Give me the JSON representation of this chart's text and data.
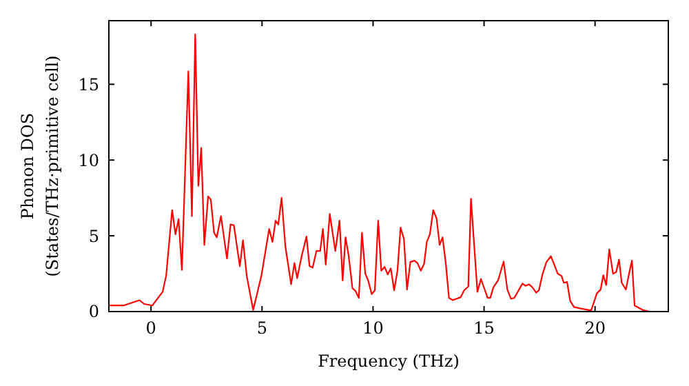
{
  "chart_data": {
    "type": "line",
    "xlabel": "Frequency (THz)",
    "ylabel": "Phonon DOS\n(States/THz·primitive cell)",
    "xlim": [
      -1.9,
      23.3
    ],
    "ylim": [
      0,
      19.2
    ],
    "xticks": [
      0,
      5,
      10,
      15,
      20
    ],
    "yticks": [
      0,
      5,
      10,
      15
    ],
    "grid": false,
    "marker": "none",
    "line_style": "solid",
    "series": [
      {
        "color": "#ff0000",
        "x": [
          -1.86,
          -1.24,
          -0.52,
          -0.31,
          0.06,
          0.52,
          0.68,
          0.95,
          1.1,
          1.24,
          1.39,
          1.68,
          1.84,
          1.99,
          2.13,
          2.26,
          2.4,
          2.57,
          2.69,
          2.84,
          2.96,
          3.15,
          3.42,
          3.58,
          3.73,
          4.0,
          4.14,
          4.31,
          4.6,
          4.97,
          5.32,
          5.47,
          5.61,
          5.73,
          5.88,
          6.05,
          6.31,
          6.46,
          6.58,
          6.79,
          7.0,
          7.14,
          7.28,
          7.45,
          7.62,
          7.74,
          7.87,
          8.05,
          8.3,
          8.49,
          8.63,
          8.76,
          8.9,
          9.07,
          9.21,
          9.36,
          9.5,
          9.65,
          9.78,
          9.94,
          10.08,
          10.23,
          10.37,
          10.52,
          10.66,
          10.8,
          10.95,
          11.1,
          11.24,
          11.39,
          11.53,
          11.68,
          11.86,
          12.0,
          12.15,
          12.3,
          12.42,
          12.56,
          12.71,
          12.86,
          13.0,
          13.13,
          13.27,
          13.42,
          13.59,
          13.95,
          14.1,
          14.29,
          14.41,
          14.7,
          14.86,
          15.16,
          15.28,
          15.42,
          15.63,
          15.88,
          16.05,
          16.21,
          16.36,
          16.73,
          16.87,
          17.02,
          17.18,
          17.35,
          17.47,
          17.64,
          17.81,
          18.01,
          18.16,
          18.32,
          18.49,
          18.59,
          18.74,
          18.88,
          19.05,
          19.36,
          19.73,
          19.83,
          20.08,
          20.25,
          20.37,
          20.5,
          20.64,
          20.81,
          20.95,
          21.08,
          21.2,
          21.39,
          21.53,
          21.66,
          21.78,
          22.15,
          22.46
        ],
        "values": [
          0.4,
          0.4,
          0.75,
          0.5,
          0.4,
          1.3,
          2.36,
          6.7,
          5.1,
          6.1,
          2.75,
          15.85,
          6.3,
          18.3,
          8.3,
          10.8,
          4.4,
          7.6,
          7.4,
          5.2,
          4.9,
          6.3,
          3.5,
          5.75,
          5.7,
          3.0,
          4.7,
          2.36,
          0.1,
          2.36,
          5.45,
          4.6,
          6.0,
          5.75,
          7.5,
          4.3,
          1.8,
          3.2,
          2.2,
          3.7,
          4.95,
          3.0,
          2.9,
          4.0,
          4.0,
          5.45,
          3.1,
          6.45,
          4.0,
          6.0,
          2.05,
          4.9,
          3.7,
          1.55,
          1.35,
          0.9,
          5.2,
          2.5,
          2.05,
          1.15,
          1.4,
          6.0,
          2.7,
          2.95,
          2.45,
          2.85,
          1.4,
          2.7,
          5.55,
          4.8,
          1.45,
          3.27,
          3.36,
          3.2,
          2.7,
          3.15,
          4.6,
          5.1,
          6.7,
          6.15,
          4.4,
          4.9,
          3.27,
          0.9,
          0.75,
          0.95,
          1.4,
          1.65,
          7.45,
          1.3,
          2.15,
          0.9,
          0.9,
          1.6,
          2.05,
          3.3,
          1.45,
          0.85,
          0.9,
          1.85,
          1.7,
          1.8,
          1.6,
          1.25,
          1.4,
          2.5,
          3.27,
          3.65,
          3.1,
          2.5,
          2.35,
          1.9,
          1.95,
          0.7,
          0.3,
          0.2,
          0.1,
          0.1,
          1.2,
          1.45,
          2.4,
          1.75,
          4.1,
          2.5,
          2.6,
          3.43,
          1.9,
          1.45,
          2.5,
          3.36,
          0.4,
          0.1,
          0
        ]
      }
    ]
  }
}
